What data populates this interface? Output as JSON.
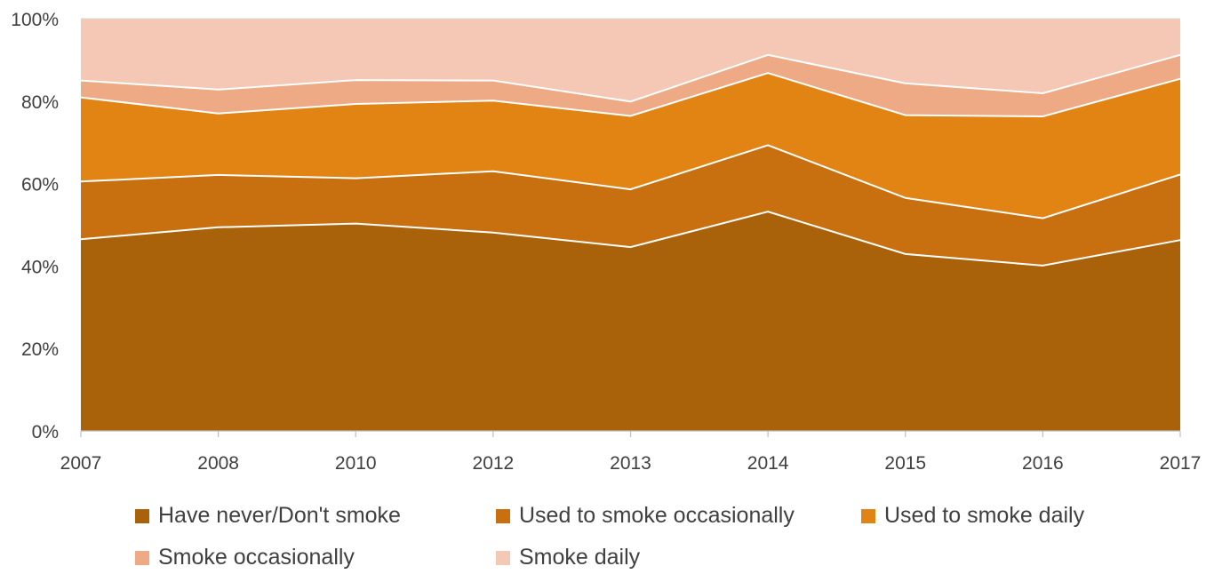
{
  "chart_data": {
    "type": "area",
    "stacked": true,
    "percent": true,
    "title": "",
    "xlabel": "",
    "ylabel": "",
    "categories": [
      "2007",
      "2008",
      "2010",
      "2012",
      "2013",
      "2014",
      "2015",
      "2016",
      "2017"
    ],
    "ylim": [
      0,
      100
    ],
    "y_ticks": [
      "0%",
      "20%",
      "40%",
      "60%",
      "80%",
      "100%"
    ],
    "grid": false,
    "legend_position": "bottom",
    "series": [
      {
        "name": "Have never/Don't smoke",
        "color": "#AA620A",
        "values": [
          46.5,
          49.4,
          50.3,
          48.1,
          44.6,
          53.2,
          42.9,
          40.1,
          46.3
        ]
      },
      {
        "name": "Used to smoke occasionally",
        "color": "#C8700F",
        "values": [
          14.0,
          12.7,
          11.0,
          14.9,
          14.0,
          16.1,
          13.6,
          11.5,
          15.9
        ]
      },
      {
        "name": "Used to smoke daily",
        "color": "#E28414",
        "values": [
          20.4,
          14.9,
          18.0,
          17.1,
          17.8,
          17.5,
          20.1,
          24.7,
          23.2
        ]
      },
      {
        "name": "Smoke occasionally",
        "color": "#EEAA85",
        "values": [
          4.1,
          5.8,
          5.8,
          4.9,
          3.5,
          4.4,
          7.7,
          5.6,
          5.8
        ]
      },
      {
        "name": "Smoke daily",
        "color": "#F4C8B4",
        "values": [
          15.0,
          17.2,
          14.9,
          15.0,
          20.1,
          8.8,
          15.7,
          18.1,
          8.8
        ]
      }
    ]
  }
}
